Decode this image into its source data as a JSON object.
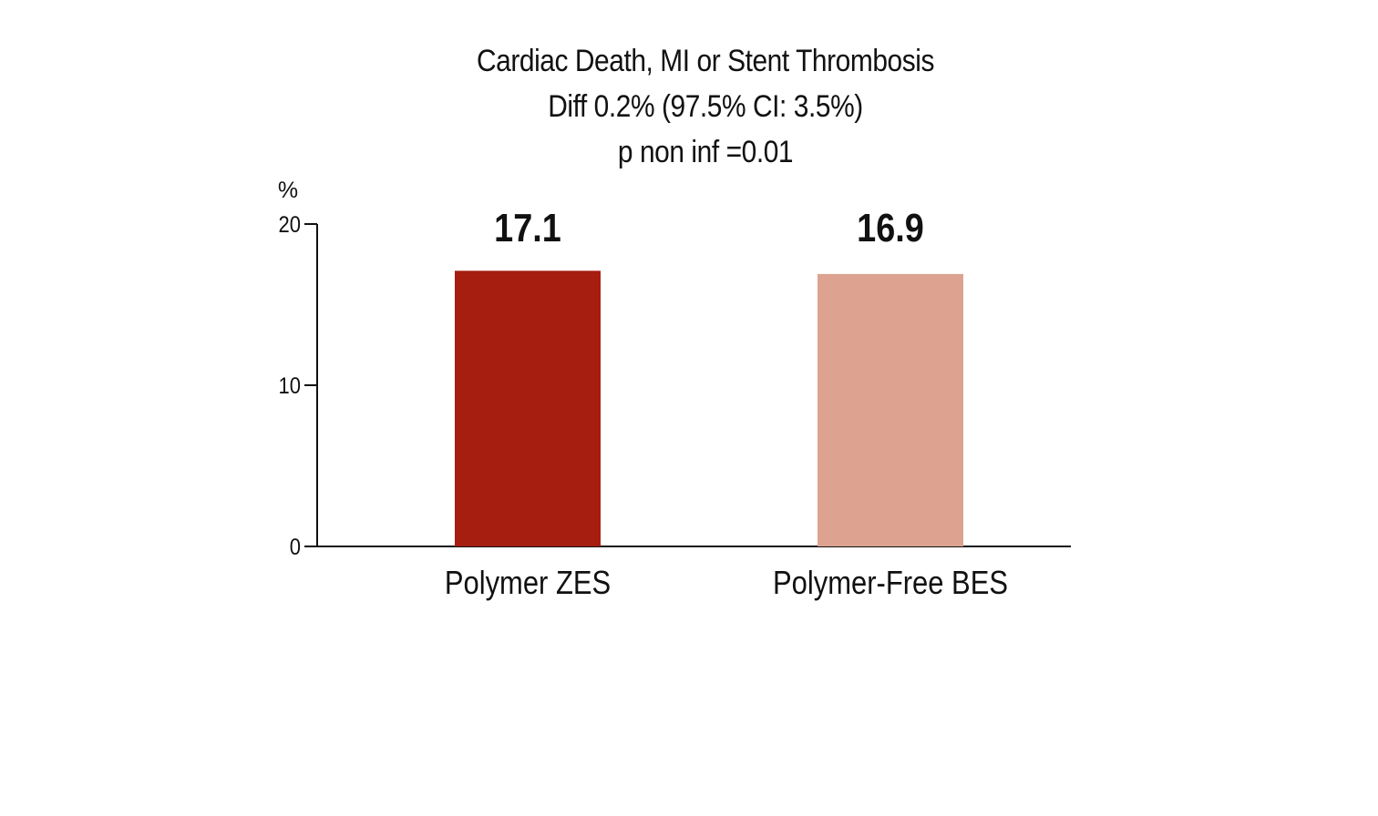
{
  "chart_data": {
    "type": "bar",
    "title_lines": [
      "Cardiac Death, MI or Stent Thrombosis",
      "Diff 0.2% (97.5% CI: 3.5%)",
      "p non inf =0.01"
    ],
    "ylabel": "%",
    "xlabel": "",
    "ylim": [
      0,
      20
    ],
    "yticks": [
      0,
      10,
      20
    ],
    "categories": [
      "Polymer ZES",
      "Polymer-Free BES"
    ],
    "values": [
      17.1,
      16.9
    ],
    "value_labels": [
      "17.1",
      "16.9"
    ],
    "bar_colors": [
      "#a51e10",
      "#dda290"
    ],
    "grid": false,
    "legend": "none"
  }
}
